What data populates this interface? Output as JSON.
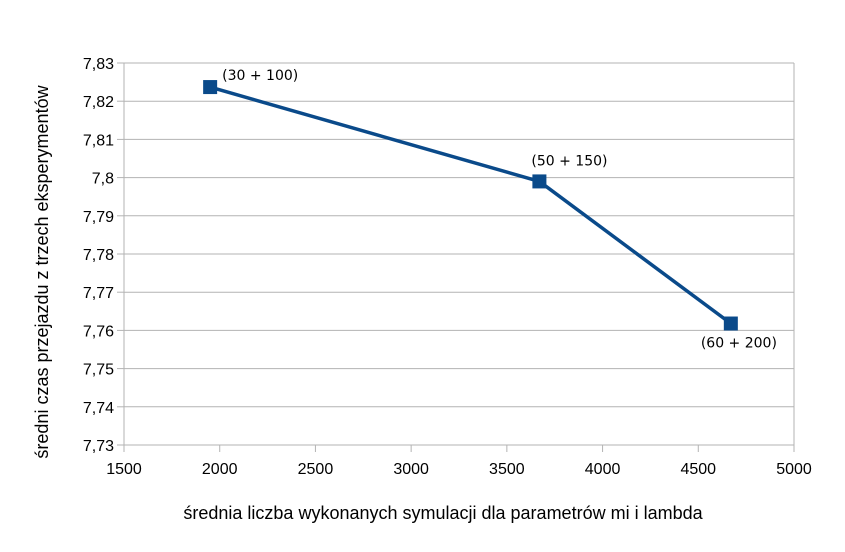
{
  "chart_data": {
    "type": "line",
    "xlabel": "średnia liczba wykonanych symulacji dla parametrów mi i lambda",
    "ylabel": "średni czas przejazdu z trzech eksperymentów",
    "xlim": [
      1500,
      5000
    ],
    "ylim": [
      7.73,
      7.83
    ],
    "x_ticks": [
      1500,
      2000,
      2500,
      3000,
      3500,
      4000,
      4500,
      5000
    ],
    "y_ticks": [
      7.73,
      7.74,
      7.75,
      7.76,
      7.77,
      7.78,
      7.79,
      7.8,
      7.81,
      7.82,
      7.83
    ],
    "x_tick_labels": [
      "1500",
      "2000",
      "2500",
      "3000",
      "3500",
      "4000",
      "4500",
      "5000"
    ],
    "y_tick_labels": [
      "7,73",
      "7,74",
      "7,75",
      "7,76",
      "7,77",
      "7,78",
      "7,79",
      "7,8",
      "7,81",
      "7,82",
      "7,83"
    ],
    "grid": "horizontal",
    "series": [
      {
        "color": "#0a4a8a",
        "points": [
          {
            "x": 1950,
            "y": 7.8237,
            "label": "(30 + 100)"
          },
          {
            "x": 3670,
            "y": 7.799,
            "label": "(50 + 150)"
          },
          {
            "x": 4670,
            "y": 7.7618,
            "label": "(60 + 200)"
          }
        ]
      }
    ]
  }
}
